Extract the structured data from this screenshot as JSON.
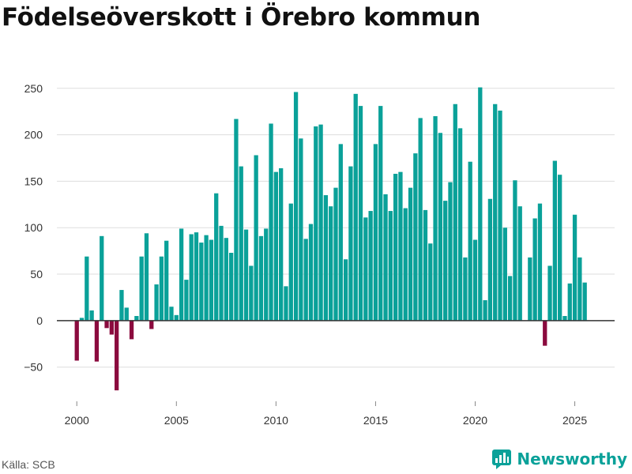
{
  "title": "Födelseöverskott i Örebro kommun",
  "source": "Källa: SCB",
  "brand": "Newsworthy",
  "colors": {
    "positive": "#0aa199",
    "negative": "#8b0a3e",
    "grid": "#dddddd",
    "zero": "#333333"
  },
  "chart_data": {
    "type": "bar",
    "title": "Födelseöverskott i Örebro kommun",
    "xlabel": "",
    "ylabel": "",
    "ylim": [
      -80,
      260
    ],
    "xlim": [
      1999.0,
      2027.0
    ],
    "yticks": [
      250,
      200,
      150,
      100,
      50,
      0,
      -50
    ],
    "ytick_labels": [
      "250",
      "200",
      "150",
      "100",
      "50",
      "0",
      "−50"
    ],
    "xticks": [
      2000,
      2005,
      2010,
      2015,
      2020,
      2025
    ],
    "xtick_labels": [
      "2000",
      "2005",
      "2010",
      "2015",
      "2020",
      "2025"
    ],
    "start_year": 2000,
    "periods_per_year": 4,
    "first_quarter": 1,
    "values": [
      -43,
      3,
      69,
      11,
      -44,
      91,
      -8,
      -15,
      -75,
      33,
      14,
      -20,
      5,
      69,
      94,
      -9,
      39,
      69,
      86,
      15,
      6,
      99,
      44,
      93,
      95,
      84,
      92,
      87,
      137,
      102,
      89,
      73,
      217,
      166,
      98,
      59,
      178,
      91,
      99,
      212,
      160,
      164,
      37,
      126,
      246,
      196,
      88,
      104,
      209,
      211,
      135,
      123,
      143,
      190,
      66,
      166,
      244,
      231,
      111,
      118,
      190,
      231,
      136,
      118,
      158,
      160,
      121,
      143,
      180,
      218,
      119,
      83,
      220,
      202,
      129,
      149,
      233,
      207,
      68,
      171,
      87,
      251,
      22,
      131,
      233,
      226,
      100,
      48,
      151,
      123,
      0,
      68,
      110,
      126,
      -27,
      59,
      172,
      157,
      5,
      40,
      114,
      68,
      41
    ]
  }
}
